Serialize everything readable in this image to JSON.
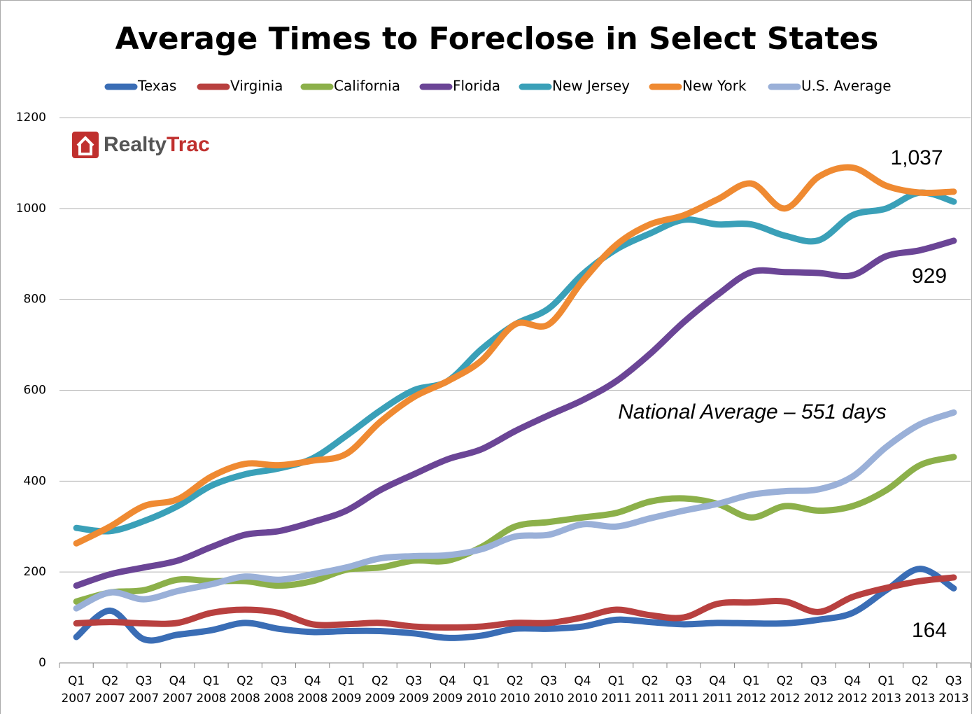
{
  "chart_data": {
    "type": "line",
    "title": "Average Times to Foreclose in Select States",
    "logo": {
      "mark": "Realty",
      "accent": "Trac"
    },
    "categories": [
      [
        "Q1",
        "2007"
      ],
      [
        "Q2",
        "2007"
      ],
      [
        "Q3",
        "2007"
      ],
      [
        "Q4",
        "2007"
      ],
      [
        "Q1",
        "2008"
      ],
      [
        "Q2",
        "2008"
      ],
      [
        "Q3",
        "2008"
      ],
      [
        "Q4",
        "2008"
      ],
      [
        "Q1",
        "2009"
      ],
      [
        "Q2",
        "2009"
      ],
      [
        "Q3",
        "2009"
      ],
      [
        "Q4",
        "2009"
      ],
      [
        "Q1",
        "2010"
      ],
      [
        "Q2",
        "2010"
      ],
      [
        "Q3",
        "2010"
      ],
      [
        "Q4",
        "2010"
      ],
      [
        "Q1",
        "2011"
      ],
      [
        "Q2",
        "2011"
      ],
      [
        "Q3",
        "2011"
      ],
      [
        "Q4",
        "2011"
      ],
      [
        "Q1",
        "2012"
      ],
      [
        "Q2",
        "2012"
      ],
      [
        "Q3",
        "2012"
      ],
      [
        "Q4",
        "2012"
      ],
      [
        "Q1",
        "2013"
      ],
      [
        "Q2",
        "2013"
      ],
      [
        "Q3",
        "2013"
      ]
    ],
    "series": [
      {
        "name": "Texas",
        "color": "#3a6db5",
        "values": [
          57,
          115,
          52,
          62,
          72,
          88,
          75,
          68,
          70,
          70,
          65,
          55,
          60,
          75,
          75,
          80,
          95,
          90,
          85,
          88,
          87,
          87,
          95,
          110,
          160,
          207,
          164
        ]
      },
      {
        "name": "Virginia",
        "color": "#b8403f",
        "values": [
          87,
          90,
          87,
          88,
          110,
          117,
          110,
          85,
          85,
          88,
          80,
          78,
          80,
          88,
          88,
          100,
          117,
          105,
          100,
          130,
          133,
          135,
          112,
          145,
          165,
          180,
          188
        ]
      },
      {
        "name": "California",
        "color": "#8cb04a",
        "values": [
          135,
          155,
          160,
          183,
          180,
          180,
          170,
          180,
          205,
          210,
          225,
          225,
          255,
          300,
          310,
          320,
          330,
          355,
          362,
          350,
          320,
          345,
          335,
          345,
          380,
          435,
          453
        ]
      },
      {
        "name": "Florida",
        "color": "#6b4596",
        "values": [
          170,
          195,
          210,
          225,
          255,
          282,
          290,
          310,
          335,
          380,
          415,
          448,
          470,
          510,
          545,
          578,
          620,
          680,
          750,
          810,
          860,
          860,
          858,
          853,
          895,
          908,
          929
        ]
      },
      {
        "name": "New Jersey",
        "color": "#3aa0b8",
        "values": [
          297,
          290,
          312,
          345,
          390,
          415,
          428,
          450,
          500,
          555,
          600,
          620,
          690,
          745,
          780,
          855,
          910,
          945,
          975,
          965,
          965,
          940,
          930,
          985,
          1000,
          1035,
          1015
        ]
      },
      {
        "name": "New York",
        "color": "#ef8a32",
        "values": [
          263,
          300,
          345,
          360,
          410,
          438,
          435,
          445,
          460,
          530,
          585,
          620,
          665,
          745,
          745,
          840,
          920,
          965,
          985,
          1020,
          1055,
          1000,
          1070,
          1090,
          1050,
          1035,
          1037
        ]
      },
      {
        "name": "U.S. Average",
        "color": "#9ab0d8",
        "values": [
          120,
          155,
          140,
          158,
          173,
          190,
          183,
          195,
          210,
          230,
          235,
          237,
          250,
          278,
          282,
          305,
          300,
          318,
          335,
          350,
          370,
          378,
          382,
          410,
          475,
          525,
          551
        ]
      }
    ],
    "ylim": [
      0,
      1200
    ],
    "yticks": [
      0,
      200,
      400,
      600,
      800,
      1000,
      1200
    ],
    "grid": true,
    "annotations": [
      "1,037",
      "929",
      "164",
      "National Average – 551 days"
    ]
  }
}
